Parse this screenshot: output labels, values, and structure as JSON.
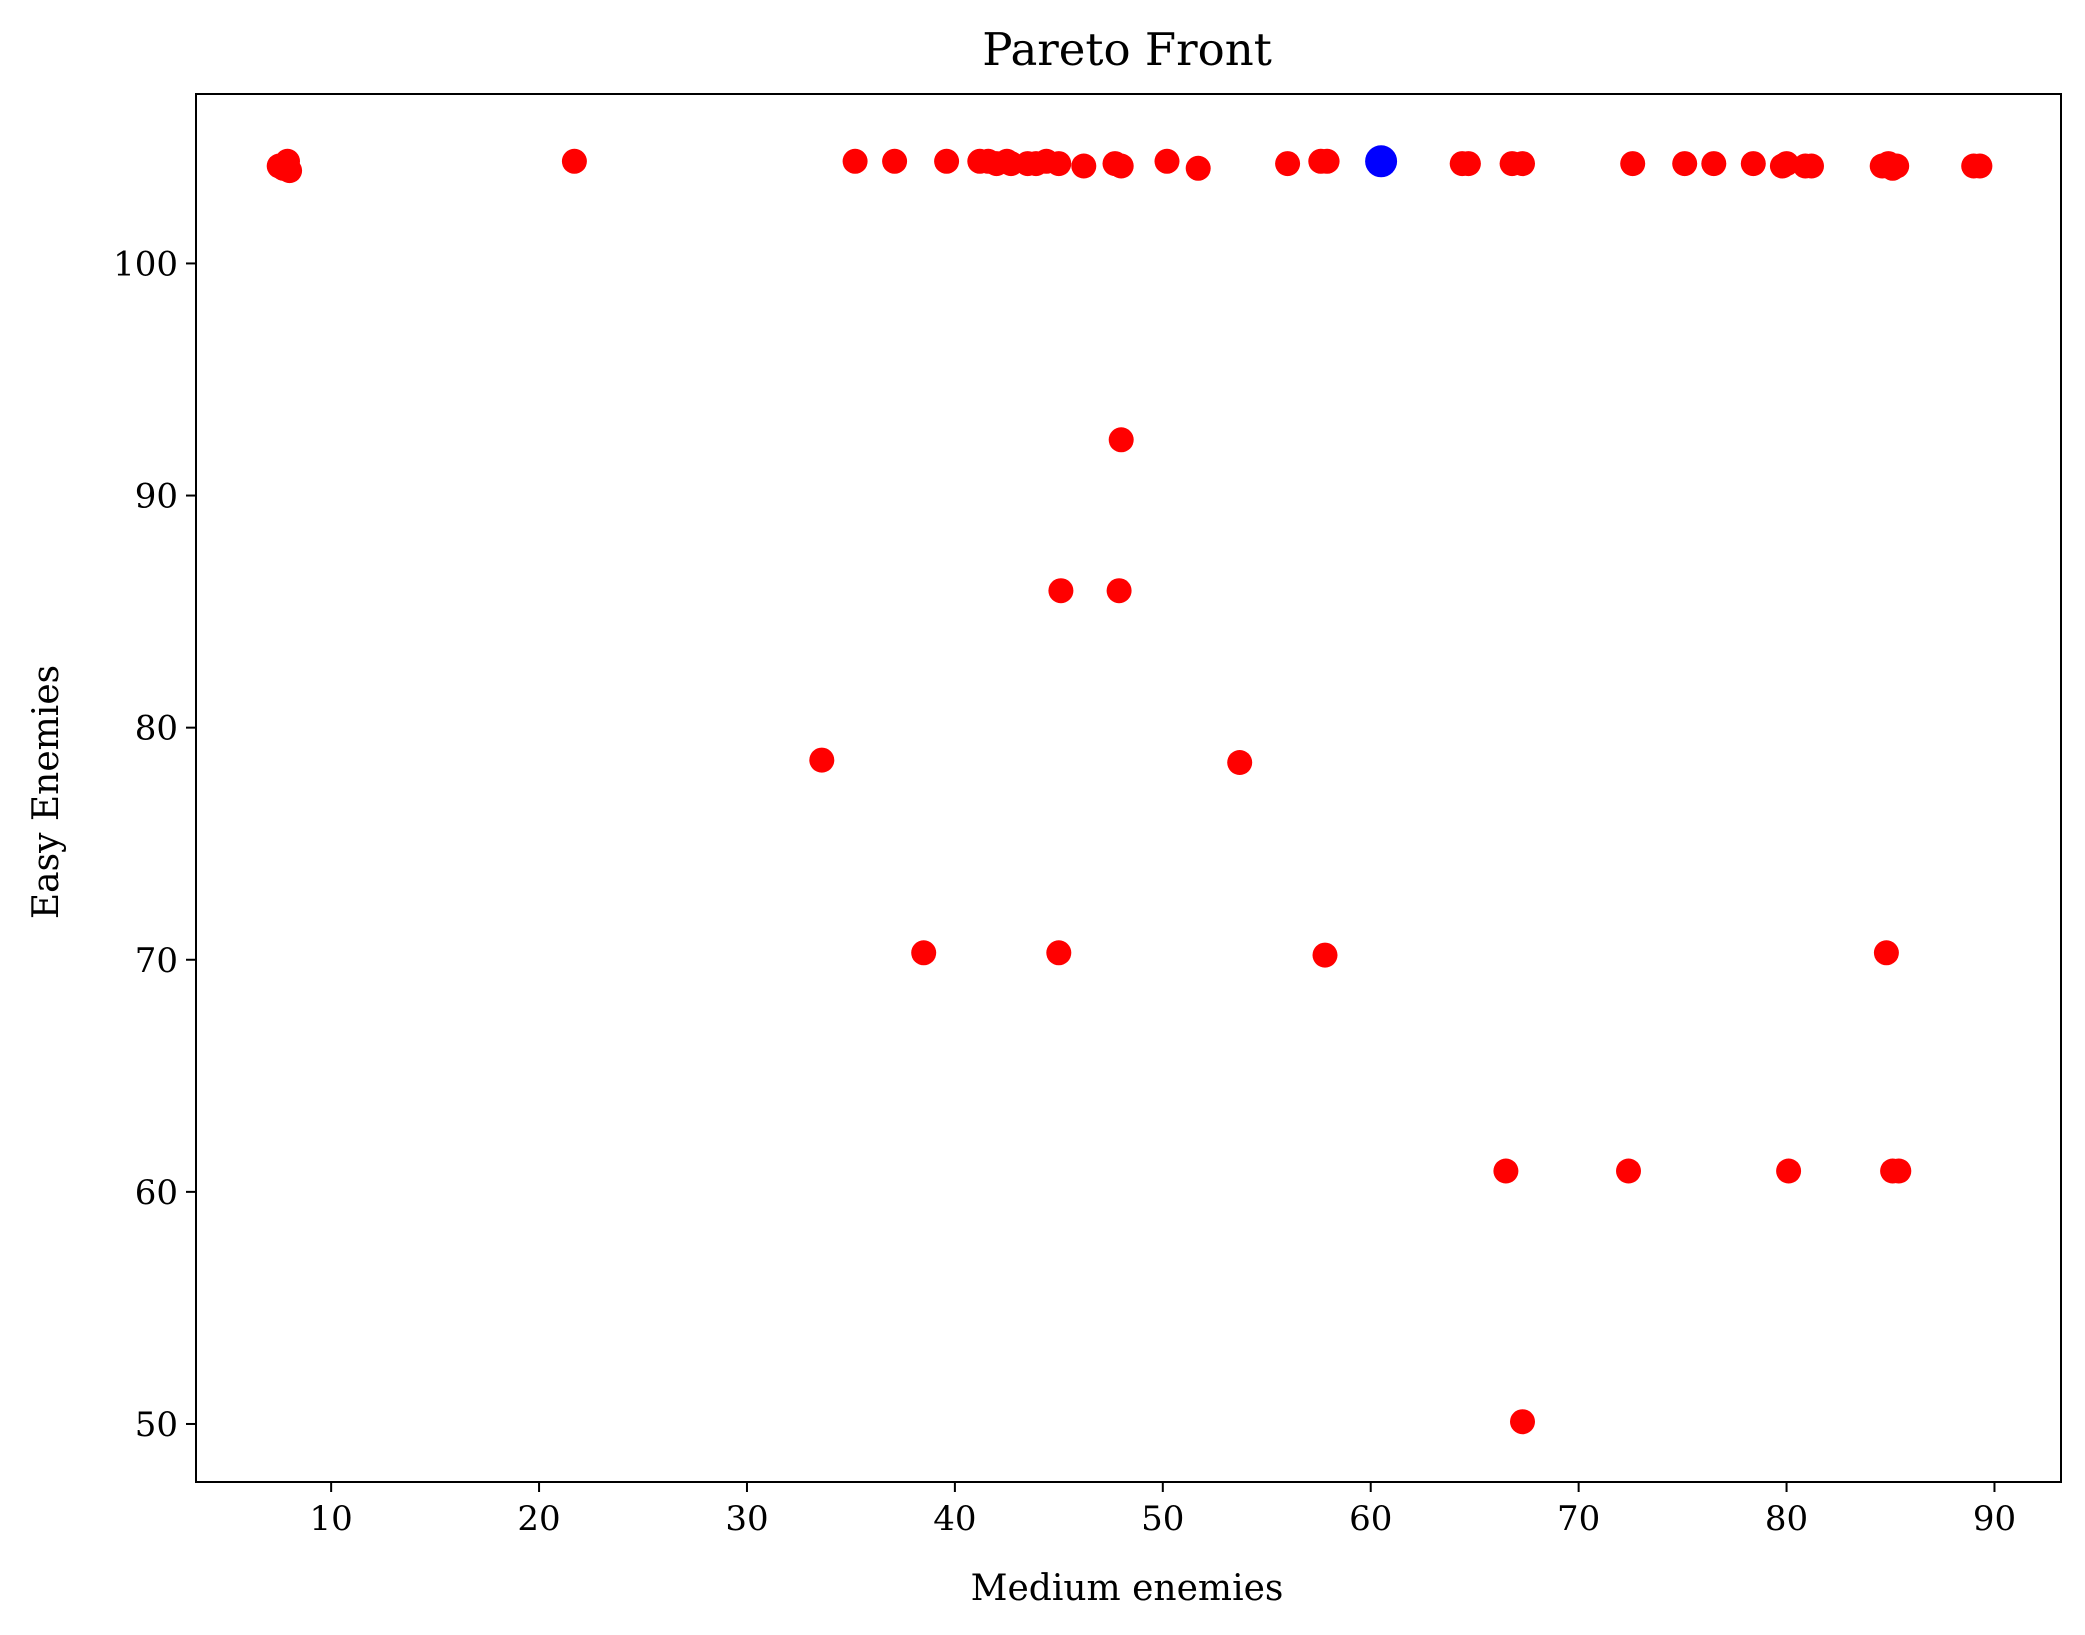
{
  "chart_data": {
    "type": "scatter",
    "title": "Pareto Front",
    "xlabel": "Medium enemies",
    "ylabel": "Easy Enemies",
    "xlim": [
      3.5,
      93.2
    ],
    "ylim": [
      47.5,
      107.3
    ],
    "xticks": [
      10,
      20,
      30,
      40,
      50,
      60,
      70,
      80,
      90
    ],
    "yticks": [
      50,
      60,
      70,
      80,
      90,
      100
    ],
    "grid": false,
    "colors": {
      "points": "#ff0000",
      "highlight": "#0000ff",
      "axes": "#000000",
      "background": "#ffffff"
    },
    "series": [
      {
        "color": "#ff0000",
        "points": [
          [
            7.5,
            104.2
          ],
          [
            7.9,
            104.4
          ],
          [
            8.0,
            104.0
          ],
          [
            7.7,
            104.1
          ],
          [
            21.7,
            104.4
          ],
          [
            35.2,
            104.4
          ],
          [
            37.1,
            104.4
          ],
          [
            39.6,
            104.4
          ],
          [
            41.2,
            104.4
          ],
          [
            41.6,
            104.4
          ],
          [
            42.0,
            104.3
          ],
          [
            42.5,
            104.4
          ],
          [
            42.7,
            104.3
          ],
          [
            43.5,
            104.3
          ],
          [
            43.9,
            104.3
          ],
          [
            44.4,
            104.4
          ],
          [
            45.0,
            104.3
          ],
          [
            46.2,
            104.2
          ],
          [
            47.7,
            104.3
          ],
          [
            48.0,
            104.2
          ],
          [
            50.2,
            104.4
          ],
          [
            51.7,
            104.1
          ],
          [
            56.0,
            104.3
          ],
          [
            57.6,
            104.4
          ],
          [
            57.9,
            104.4
          ],
          [
            64.4,
            104.3
          ],
          [
            64.7,
            104.3
          ],
          [
            66.8,
            104.3
          ],
          [
            67.3,
            104.3
          ],
          [
            72.6,
            104.3
          ],
          [
            75.1,
            104.3
          ],
          [
            76.5,
            104.3
          ],
          [
            78.4,
            104.3
          ],
          [
            79.8,
            104.2
          ],
          [
            80.0,
            104.3
          ],
          [
            80.9,
            104.2
          ],
          [
            81.2,
            104.2
          ],
          [
            84.6,
            104.2
          ],
          [
            84.9,
            104.3
          ],
          [
            85.1,
            104.1
          ],
          [
            85.3,
            104.2
          ],
          [
            89.0,
            104.2
          ],
          [
            89.3,
            104.2
          ],
          [
            48.0,
            92.4
          ],
          [
            45.1,
            85.9
          ],
          [
            47.9,
            85.9
          ],
          [
            33.6,
            78.6
          ],
          [
            53.7,
            78.5
          ],
          [
            38.5,
            70.3
          ],
          [
            45.0,
            70.3
          ],
          [
            57.8,
            70.2
          ],
          [
            84.8,
            70.3
          ],
          [
            66.5,
            60.9
          ],
          [
            72.4,
            60.9
          ],
          [
            80.1,
            60.9
          ],
          [
            85.1,
            60.9
          ],
          [
            85.4,
            60.9
          ],
          [
            67.3,
            50.1
          ]
        ]
      },
      {
        "color": "#0000ff",
        "points": [
          [
            60.5,
            104.4
          ]
        ]
      }
    ]
  }
}
